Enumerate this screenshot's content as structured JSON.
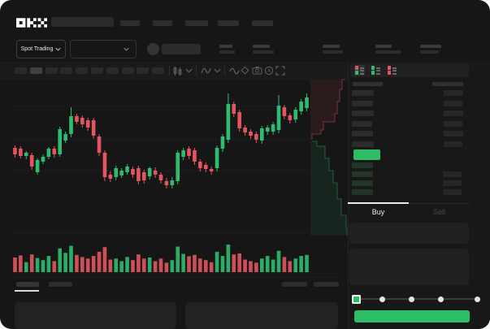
{
  "app": {
    "name": "OKX"
  },
  "header": {
    "search_placeholder": "",
    "nav_placeholder_count": 5
  },
  "market_bar": {
    "market_selector": "Spot Trading",
    "stat_placeholder_count": 5
  },
  "chart_toolbar": {
    "timeframe_placeholder_count": 10,
    "active_timeframe_index": 1,
    "icons": [
      "candle-type",
      "indicators",
      "wave",
      "draw",
      "camera",
      "history",
      "fullscreen"
    ]
  },
  "orderbook": {
    "view_modes": [
      "combined",
      "bids-only",
      "asks-only"
    ],
    "active_view_mode": "combined",
    "ask_color": "#e35561",
    "bid_color": "#2ebd70",
    "asks": [
      {
        "price_len": 27,
        "amount_len": 24
      },
      {
        "price_len": 26,
        "amount_len": 23
      },
      {
        "price_len": 27,
        "amount_len": 24
      },
      {
        "price_len": 25,
        "amount_len": 23
      },
      {
        "price_len": 26,
        "amount_len": 24
      },
      {
        "price_len": 27,
        "amount_len": 23
      }
    ],
    "last_price_color": "#2dbd64",
    "bids": [
      {
        "price_len": 26,
        "amount_len": 0
      },
      {
        "price_len": 26,
        "amount_len": 23
      },
      {
        "price_len": 26,
        "amount_len": 23
      },
      {
        "price_len": 26,
        "amount_len": 23
      }
    ]
  },
  "trade_panel": {
    "tabs": [
      {
        "label": "Buy",
        "active": true
      },
      {
        "label": "Sell",
        "active": false
      }
    ],
    "amount_slider": {
      "stops_percent": [
        0,
        25,
        50,
        75,
        100
      ],
      "value_percent": 0
    },
    "submit_button_color": "#2dbd64"
  },
  "bottom_tabs": {
    "placeholder_count": 2,
    "active_index": 0
  },
  "chart_data": {
    "type": "candlestick",
    "title": "",
    "xlabel": "",
    "ylabel": "",
    "ylim": [
      0,
      198
    ],
    "grid": true,
    "legend": false,
    "colors": {
      "up": "#2ebd70",
      "down": "#e35561"
    },
    "candles": [
      [
        113,
        116,
        101,
        105
      ],
      [
        112,
        115,
        100,
        103
      ],
      [
        103,
        109,
        99,
        107
      ],
      [
        104,
        107,
        86,
        90
      ],
      [
        83,
        100,
        80,
        98
      ],
      [
        96,
        105,
        93,
        102
      ],
      [
        102,
        114,
        99,
        112
      ],
      [
        112,
        115,
        101,
        105
      ],
      [
        105,
        139,
        102,
        136
      ],
      [
        122,
        133,
        119,
        130
      ],
      [
        130,
        163,
        126,
        152
      ],
      [
        152,
        155,
        142,
        145
      ],
      [
        150,
        153,
        138,
        142
      ],
      [
        147,
        150,
        134,
        138
      ],
      [
        147,
        150,
        124,
        128
      ],
      [
        127,
        130,
        103,
        107
      ],
      [
        107,
        110,
        72,
        77
      ],
      [
        80,
        84,
        71,
        75
      ],
      [
        77,
        91,
        73,
        88
      ],
      [
        79,
        88,
        76,
        85
      ],
      [
        83,
        93,
        80,
        90
      ],
      [
        87,
        90,
        76,
        80
      ],
      [
        88,
        91,
        68,
        72
      ],
      [
        83,
        86,
        69,
        73
      ],
      [
        78,
        90,
        74,
        88
      ],
      [
        85,
        89,
        76,
        80
      ],
      [
        80,
        83,
        69,
        73
      ],
      [
        72,
        76,
        63,
        67
      ],
      [
        67,
        77,
        63,
        73
      ],
      [
        72,
        110,
        68,
        107
      ],
      [
        102,
        113,
        98,
        110
      ],
      [
        112,
        115,
        99,
        103
      ],
      [
        110,
        113,
        92,
        96
      ],
      [
        96,
        99,
        84,
        88
      ],
      [
        92,
        95,
        83,
        87
      ],
      [
        87,
        90,
        80,
        84
      ],
      [
        88,
        116,
        84,
        113
      ],
      [
        112,
        130,
        108,
        127
      ],
      [
        123,
        180,
        119,
        167
      ],
      [
        167,
        170,
        151,
        155
      ],
      [
        157,
        160,
        133,
        137
      ],
      [
        138,
        141,
        128,
        132
      ],
      [
        133,
        136,
        124,
        128
      ],
      [
        130,
        133,
        119,
        123
      ],
      [
        122,
        140,
        118,
        137
      ],
      [
        133,
        141,
        129,
        138
      ],
      [
        133,
        145,
        129,
        142
      ],
      [
        135,
        178,
        131,
        165
      ],
      [
        163,
        166,
        148,
        152
      ],
      [
        153,
        156,
        143,
        147
      ],
      [
        148,
        163,
        144,
        160
      ],
      [
        158,
        173,
        154,
        170
      ],
      [
        162,
        180,
        158,
        175
      ]
    ],
    "volumes": [
      50,
      58,
      32,
      62,
      48,
      40,
      56,
      36,
      85,
      68,
      95,
      60,
      52,
      46,
      56,
      72,
      90,
      42,
      46,
      36,
      52,
      40,
      62,
      46,
      50,
      36,
      46,
      30,
      40,
      92,
      64,
      55,
      60,
      46,
      40,
      32,
      72,
      56,
      100,
      62,
      66,
      42,
      36,
      30,
      46,
      56,
      42,
      76,
      52,
      36,
      46,
      56,
      60
    ],
    "depth": {
      "type": "area",
      "orientation": "vertical",
      "asks_steps": [
        [
          43,
          2
        ],
        [
          40,
          14
        ],
        [
          37,
          29
        ],
        [
          34,
          44
        ],
        [
          31,
          54
        ],
        [
          17,
          64
        ],
        [
          14,
          69
        ],
        [
          3,
          76
        ]
      ],
      "bids_steps": [
        [
          3,
          78
        ],
        [
          9,
          84
        ],
        [
          19,
          99
        ],
        [
          24,
          114
        ],
        [
          29,
          129
        ],
        [
          34,
          149
        ],
        [
          39,
          169
        ],
        [
          45,
          185
        ],
        [
          46,
          194
        ]
      ]
    }
  }
}
